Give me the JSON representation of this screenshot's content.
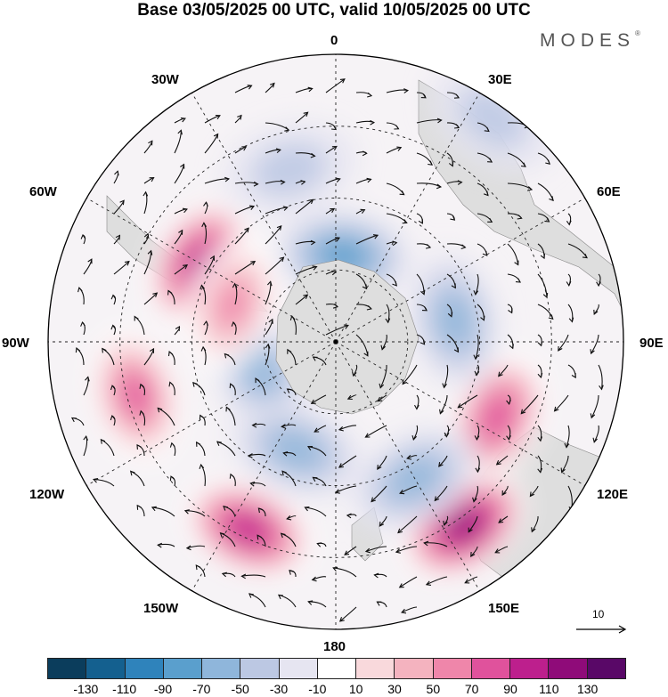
{
  "title": "Base 03/05/2025 00 UTC, valid 10/05/2025 00 UTC",
  "brand": "MODES",
  "brand_mark": "®",
  "longitude_labels": {
    "lon_0": "0",
    "lon_30e": "30E",
    "lon_60e": "60E",
    "lon_90e": "90E",
    "lon_120e": "120E",
    "lon_150e": "150E",
    "lon_180": "180",
    "lon_150w": "150W",
    "lon_120w": "120W",
    "lon_90w": "90W",
    "lon_60w": "60W",
    "lon_30w": "30W"
  },
  "reference_vector": "10",
  "colorbar": {
    "colors": [
      "#0b3d5c",
      "#14608f",
      "#2f83bb",
      "#5a9fcd",
      "#8fb6db",
      "#bcc8e3",
      "#e6e5f1",
      "#ffffff",
      "#f9d9dc",
      "#f4b3bf",
      "#ef86aa",
      "#e0529c",
      "#bd1f8d",
      "#8f0b79",
      "#590867"
    ],
    "ticks": [
      "-130",
      "-110",
      "-90",
      "-70",
      "-50",
      "-30",
      "-10",
      "10",
      "30",
      "50",
      "70",
      "90",
      "110",
      "130"
    ]
  },
  "map_data": {
    "projection": "south-polar-stereographic",
    "land_color": "#dedede",
    "anomalies": [
      {
        "lon": -155,
        "r": 0.72,
        "value": 100
      },
      {
        "lon": 145,
        "r": 0.78,
        "value": 120
      },
      {
        "lon": -105,
        "r": 0.72,
        "value": 90
      },
      {
        "lon": 115,
        "r": 0.62,
        "value": 75
      },
      {
        "lon": -60,
        "r": 0.55,
        "value": 95
      },
      {
        "lon": 5,
        "r": 0.3,
        "value": -70
      },
      {
        "lon": 80,
        "r": 0.42,
        "value": -65
      },
      {
        "lon": -110,
        "r": 0.28,
        "value": -60
      },
      {
        "lon": -70,
        "r": 0.38,
        "value": 70
      },
      {
        "lon": 150,
        "r": 0.55,
        "value": -60
      },
      {
        "lon": -15,
        "r": 0.62,
        "value": -45
      },
      {
        "lon": 35,
        "r": 0.95,
        "value": -45
      },
      {
        "lon": -160,
        "r": 0.4,
        "value": -60
      }
    ]
  }
}
